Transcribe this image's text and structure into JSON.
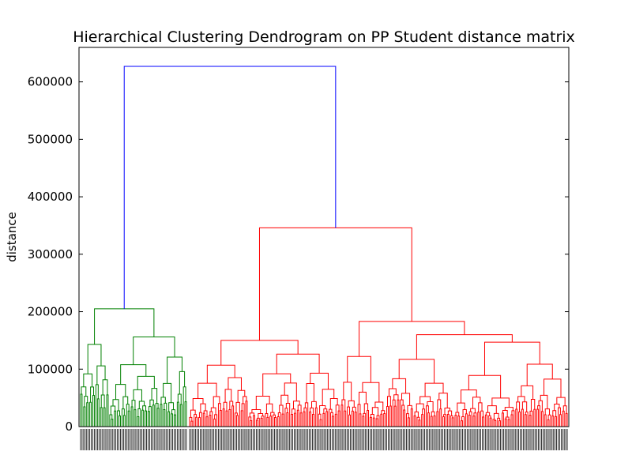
{
  "chart_data": {
    "type": "dendrogram",
    "title": "Hierarchical Clustering Dendrogram on PP Student distance matrix",
    "ylabel": "distance",
    "xlabel": "",
    "ylim": [
      0,
      660000
    ],
    "yticks": [
      0,
      100000,
      200000,
      300000,
      400000,
      500000,
      600000
    ],
    "ytick_labels": [
      "0",
      "100000",
      "200000",
      "300000",
      "400000",
      "500000",
      "600000"
    ],
    "grid": false,
    "colors": {
      "root": "#0000ff",
      "cluster_green": "#008000",
      "cluster_red": "#ff0000"
    },
    "merges": [
      {
        "name": "root",
        "height": 627000,
        "children": [
          "green-cluster",
          "red-cluster"
        ]
      },
      {
        "name": "red-cluster",
        "height": 346000,
        "children": [
          "red-a",
          "red-b"
        ]
      },
      {
        "name": "green-cluster",
        "height": 205000,
        "children": [
          "green-a",
          "green-b"
        ]
      },
      {
        "name": "red-b",
        "height": 183000
      },
      {
        "name": "red-b-right",
        "height": 160000
      },
      {
        "name": "green-b",
        "height": 156000
      },
      {
        "name": "red-a",
        "height": 150000
      },
      {
        "name": "red-b-right-right",
        "height": 147000
      },
      {
        "name": "green-a",
        "height": 143000
      }
    ],
    "leaf_count_green": 70,
    "leaf_count_red": 250
  }
}
